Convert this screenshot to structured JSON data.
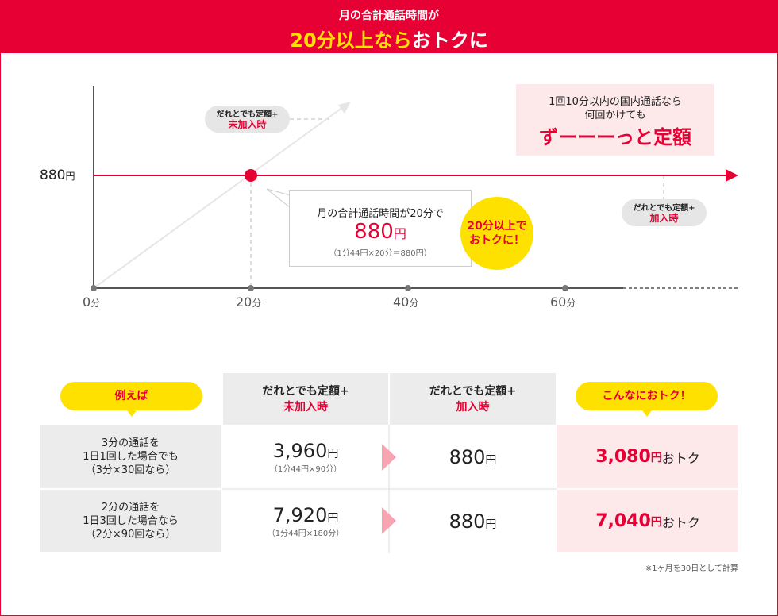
{
  "header": {
    "line1": "月の合計通話時間が",
    "line2_highlight": "20分以上なら",
    "line2_rest": "おトクに"
  },
  "chart": {
    "y_label": "880",
    "y_unit": "円",
    "x_ticks": [
      {
        "v": "0",
        "u": "分"
      },
      {
        "v": "20",
        "u": "分"
      },
      {
        "v": "40",
        "u": "分"
      },
      {
        "v": "60",
        "u": "分"
      }
    ],
    "pill_not_joined": {
      "line1": "だれとでも定額+",
      "line2": "未加入時"
    },
    "pill_joined": {
      "line1": "だれとでも定額+",
      "line2": "加入時"
    },
    "info_box": {
      "line1": "1回10分以内の国内通話なら",
      "line2": "何回かけても",
      "big": "ずーーーっと定額"
    },
    "callout": {
      "line1": "月の合計通話時間が20分で",
      "price": "880",
      "unit": "円",
      "calc": "（1分44円×20分＝880円）"
    },
    "badge": {
      "line1": "20分以上で",
      "line2": "おトクに！"
    }
  },
  "table": {
    "example_label": "例えば",
    "col_not_joined": {
      "line1": "だれとでも定額+",
      "line2": "未加入時"
    },
    "col_joined": {
      "line1": "だれとでも定額+",
      "line2": "加入時"
    },
    "col_savings": "こんなにおトク！",
    "rows": [
      {
        "l1": "3分の通話を",
        "l2": "1日1回した場合でも",
        "l3": "（3分×30回なら）",
        "price": "3,960",
        "calc": "（1分44円×90分）",
        "joined": "880",
        "save": "3,080"
      },
      {
        "l1": "2分の通話を",
        "l2": "1日3回した場合なら",
        "l3": "（2分×90回なら）",
        "price": "7,920",
        "calc": "（1分44円×180分）",
        "joined": "880",
        "save": "7,040"
      }
    ],
    "unit": "円",
    "save_suffix": "おトク",
    "note": "※1ヶ月を30日として計算"
  },
  "colors": {
    "red": "#e60033",
    "yellow": "#ffe100",
    "pink": "#fde8ea",
    "gray": "#ececec"
  }
}
